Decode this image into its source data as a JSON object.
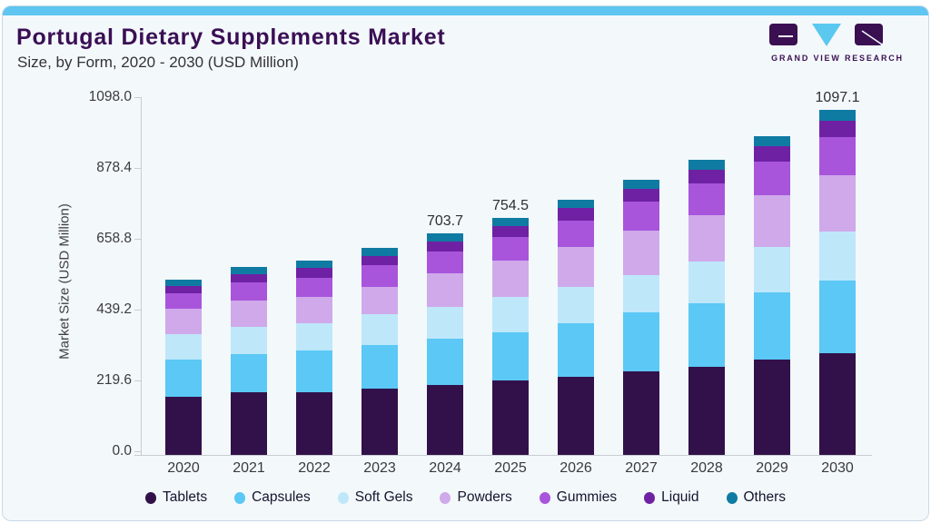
{
  "header": {
    "title": "Portugal Dietary Supplements Market",
    "subtitle": "Size, by Form, 2020 - 2030 (USD Million)",
    "logo_text": "GRAND VIEW RESEARCH"
  },
  "colors": {
    "accent_strip": "#5fc5f1",
    "title_purple": "#3a0f54",
    "card_background": "#f3f8fb",
    "axis_line": "#c9cdd4",
    "logo_dark": "#3a1052",
    "logo_blue": "#5bc8f0"
  },
  "chart_data": {
    "type": "bar",
    "stacked": true,
    "title": "Portugal Dietary Supplements Market Size, by Form, 2020 - 2030 (USD Million)",
    "xlabel": "",
    "ylabel": "Market Size (USD Million)",
    "grid": false,
    "legend_position": "bottom",
    "ylim": [
      0,
      1147
    ],
    "yticks": [
      {
        "label": "0.0",
        "value": 0
      },
      {
        "label": "219.6",
        "value": 219.6
      },
      {
        "label": "439.2",
        "value": 439.2
      },
      {
        "label": "658.8",
        "value": 658.8
      },
      {
        "label": "878.4",
        "value": 878.4
      },
      {
        "label": "1098.0",
        "value": 1098.0
      }
    ],
    "categories": [
      "2020",
      "2021",
      "2022",
      "2023",
      "2024",
      "2025",
      "2026",
      "2027",
      "2028",
      "2029",
      "2030"
    ],
    "series": [
      {
        "name": "Tablets",
        "color": "#32114a",
        "values": [
          185.5,
          198.0,
          198.7,
          210.1,
          222.6,
          237.0,
          249.4,
          265.9,
          281.2,
          302.6,
          323.4
        ]
      },
      {
        "name": "Capsules",
        "color": "#5bc8f5",
        "values": [
          118.5,
          124.0,
          132.9,
          140.7,
          147.4,
          154.0,
          170.0,
          187.9,
          200.6,
          215.6,
          231.2
        ]
      },
      {
        "name": "Soft Gels",
        "color": "#bee7fa",
        "values": [
          81.0,
          86.0,
          86.7,
          96.5,
          101.2,
          111.0,
          115.0,
          117.6,
          133.8,
          144.5,
          156.1
        ]
      },
      {
        "name": "Powders",
        "color": "#cfa9ea",
        "values": [
          80.0,
          84.0,
          85.0,
          88.4,
          105.5,
          115.6,
          127.2,
          142.5,
          148.3,
          163.6,
          179.2
        ]
      },
      {
        "name": "Gummies",
        "color": "#a855dc",
        "values": [
          48.0,
          57.5,
          59.5,
          67.6,
          69.4,
          76.9,
          85.0,
          91.6,
          101.2,
          108.1,
          120.5
        ]
      },
      {
        "name": "Liquid",
        "color": "#6f21a4",
        "values": [
          24.0,
          26.5,
          31.8,
          30.6,
          31.8,
          33.8,
          38.4,
          41.0,
          43.4,
          48.5,
          52.9
        ]
      },
      {
        "name": "Others",
        "color": "#0f7ba2",
        "values": [
          20.0,
          22.2,
          23.0,
          25.1,
          25.8,
          26.2,
          26.0,
          30.0,
          31.8,
          31.0,
          33.8
        ]
      }
    ],
    "totals": [
      557.0,
      598.2,
      617.6,
      659.0,
      703.7,
      754.5,
      811.0,
      876.5,
      940.3,
      1013.9,
      1097.1
    ],
    "annotations": [
      {
        "category": "2024",
        "text": "703.7"
      },
      {
        "category": "2025",
        "text": "754.5"
      },
      {
        "category": "2030",
        "text": "1097.1"
      }
    ]
  }
}
